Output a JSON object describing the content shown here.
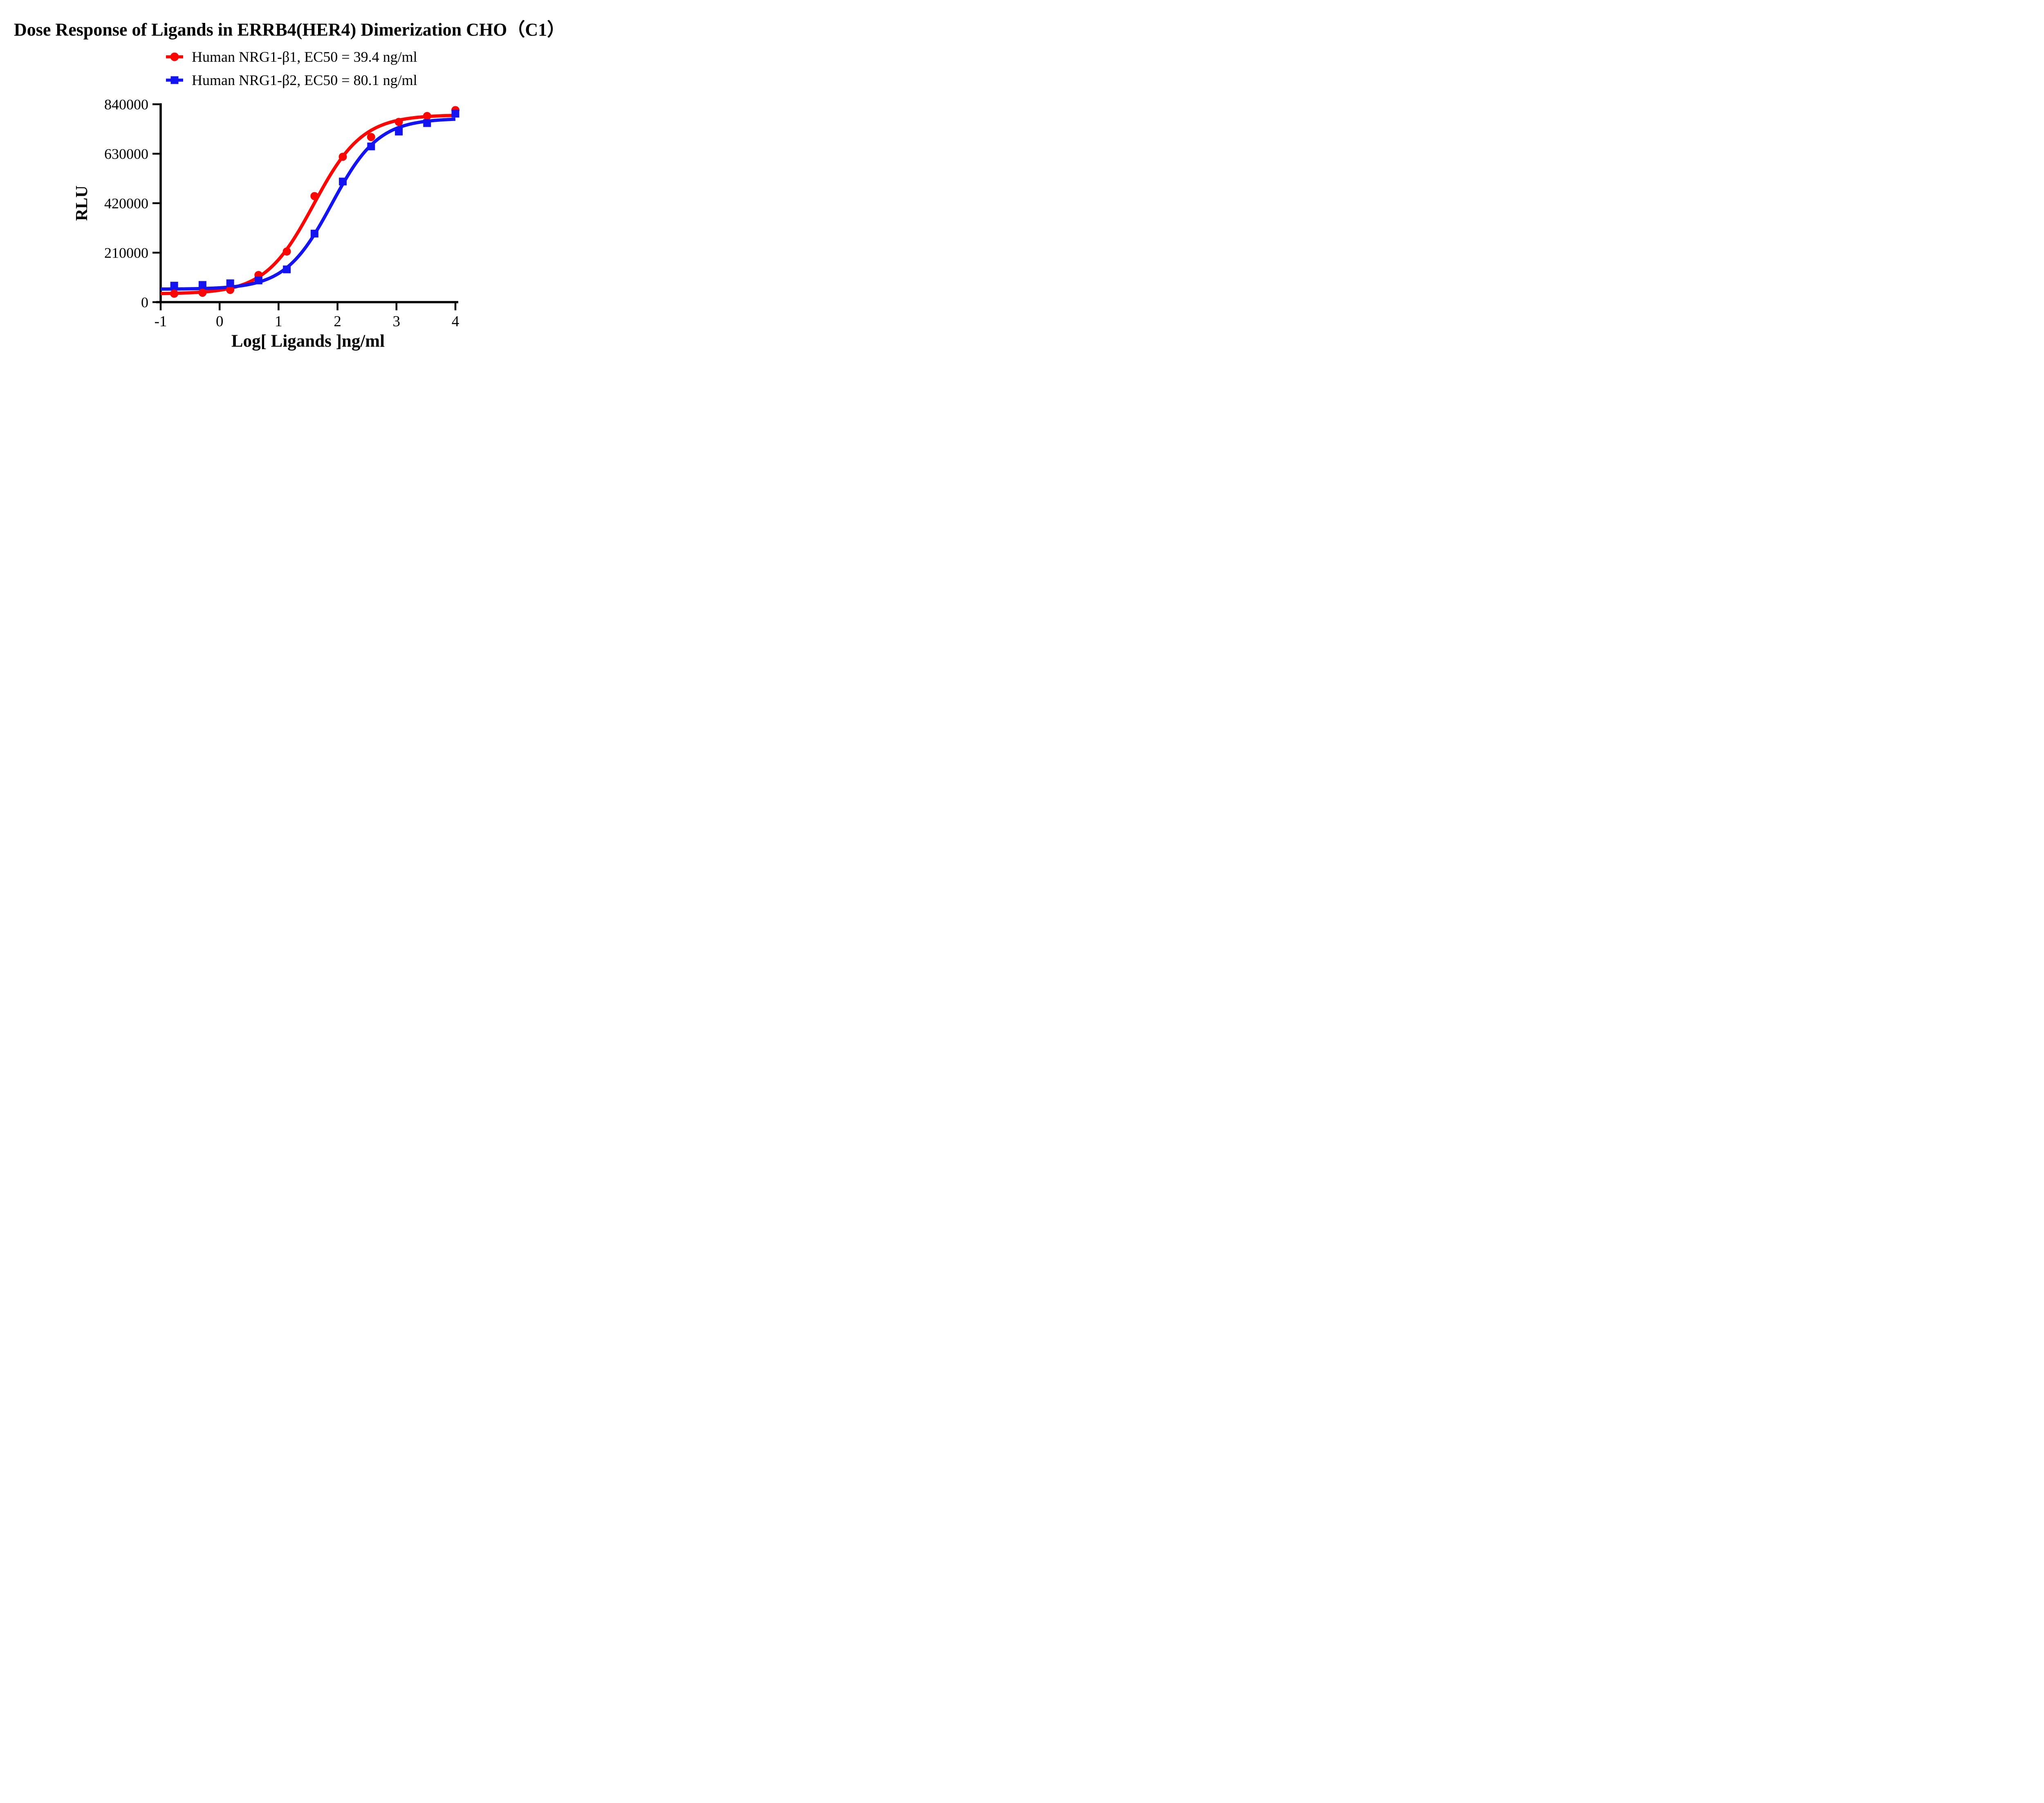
{
  "figure": {
    "title": "Dose Response of Ligands in ERRB4(HER4) Dimerization CHO（C1）",
    "background_color": "#ffffff",
    "axis_color": "#000000"
  },
  "legend": {
    "position": "top-center",
    "items": [
      {
        "label": "Human NRG1-β1, EC50 = 39.4 ng/ml",
        "color": "#fb0505",
        "marker": "circle"
      },
      {
        "label": "Human NRG1-β2, EC50 = 80.1 ng/ml",
        "color": "#1414f0",
        "marker": "square"
      }
    ]
  },
  "chart_data": {
    "type": "scatter",
    "subtype": "dose-response with 4PL sigmoidal fit curves",
    "title": "Dose Response of Ligands in ERRB4(HER4) Dimerization CHO（C1）",
    "xlabel": "Log[ Ligands ]ng/ml",
    "ylabel": "RLU",
    "xlim": [
      -1,
      4
    ],
    "ylim": [
      0,
      840000
    ],
    "x_ticks": [
      -1,
      0,
      1,
      2,
      3,
      4
    ],
    "y_ticks": [
      0,
      210000,
      420000,
      630000,
      840000
    ],
    "grid": false,
    "legend_position": "top-center",
    "series": [
      {
        "name": "Human NRG1-β1",
        "ec50_label": "EC50 = 39.4 ng/ml",
        "ec50_ng_ml": 39.4,
        "color": "#fb0505",
        "marker": "circle",
        "x": [
          -0.77,
          -0.29,
          0.18,
          0.66,
          1.14,
          1.61,
          2.09,
          2.57,
          3.04,
          3.52,
          4.0
        ],
        "y": [
          36000,
          40000,
          52000,
          115000,
          215000,
          450000,
          617000,
          701000,
          765000,
          790000,
          815000
        ],
        "fit_4pl": {
          "bottom": 35000,
          "top": 795000,
          "logEC50": 1.596,
          "hill": 1.05
        }
      },
      {
        "name": "Human NRG1-β2",
        "ec50_label": "EC50 = 80.1 ng/ml",
        "ec50_ng_ml": 80.1,
        "color": "#1414f0",
        "marker": "square",
        "x": [
          -0.77,
          -0.29,
          0.18,
          0.66,
          1.14,
          1.61,
          2.09,
          2.57,
          3.04,
          3.52,
          4.0
        ],
        "y": [
          70000,
          73000,
          80000,
          92000,
          139000,
          291000,
          512000,
          661000,
          724000,
          760000,
          800000
        ],
        "fit_4pl": {
          "bottom": 55000,
          "top": 780000,
          "logEC50": 1.904,
          "hill": 1.1
        }
      }
    ]
  }
}
